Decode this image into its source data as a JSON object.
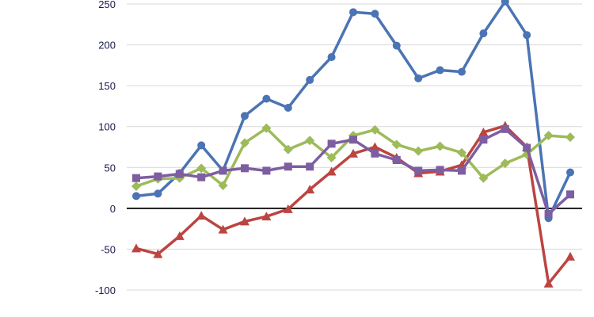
{
  "chart_data": {
    "type": "line",
    "ylim": [
      -100,
      250
    ],
    "yticks": [
      250,
      200,
      150,
      100,
      50,
      0,
      -50,
      -100
    ],
    "ytick_labels": [
      "250",
      "200",
      "150",
      "100",
      "50",
      "0",
      "-50",
      "-100"
    ],
    "grid": true,
    "x": [
      1,
      2,
      3,
      4,
      5,
      6,
      7,
      8,
      9,
      10,
      11,
      12,
      13,
      14,
      15,
      16,
      17,
      18,
      19,
      20,
      21
    ],
    "series": [
      {
        "marker": "circle",
        "color": "#4a74b4",
        "values": [
          15,
          18,
          43,
          77,
          46,
          113,
          134,
          123,
          157,
          185,
          240,
          238,
          199,
          159,
          169,
          167,
          214,
          253,
          212,
          -12,
          44
        ]
      },
      {
        "marker": "triangle",
        "color": "#bc4441",
        "values": [
          -49,
          -56,
          -34,
          -9,
          -26,
          -16,
          -10,
          -1,
          23,
          45,
          67,
          75,
          62,
          43,
          45,
          53,
          93,
          101,
          75,
          -92,
          -59
        ]
      },
      {
        "marker": "diamond",
        "color": "#9dbb59",
        "values": [
          27,
          36,
          37,
          49,
          28,
          80,
          98,
          72,
          83,
          62,
          89,
          96,
          78,
          70,
          76,
          68,
          37,
          55,
          66,
          89,
          87
        ]
      },
      {
        "marker": "square",
        "color": "#7d5ea0",
        "values": [
          37,
          39,
          42,
          38,
          46,
          49,
          46,
          51,
          51,
          79,
          84,
          67,
          59,
          46,
          47,
          46,
          84,
          97,
          74,
          -7,
          17
        ]
      }
    ]
  }
}
